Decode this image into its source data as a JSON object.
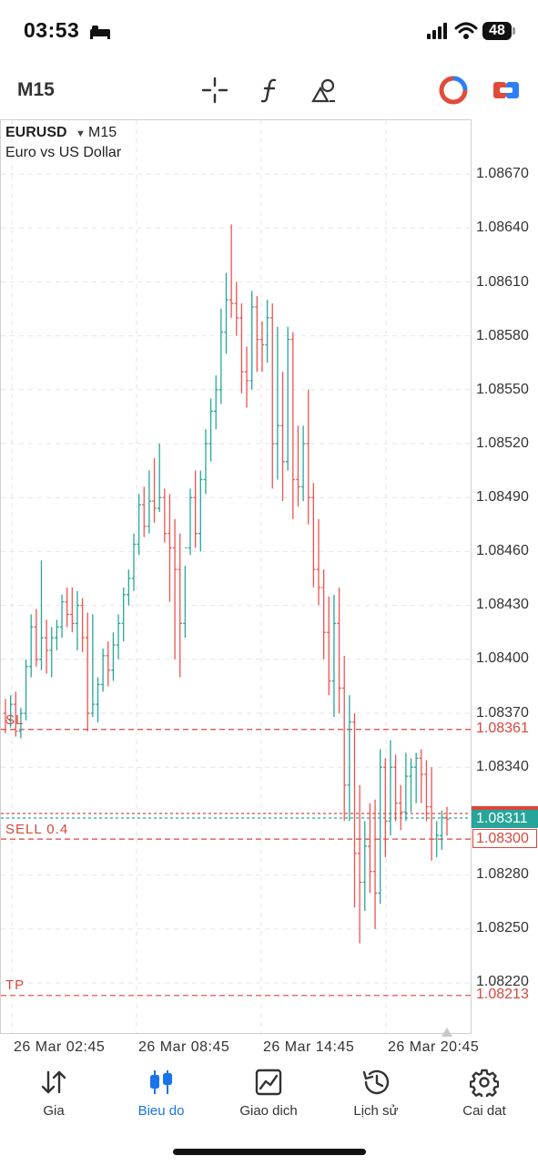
{
  "status_bar": {
    "time": "03:53",
    "battery": "48"
  },
  "toolbar": {
    "timeframe": "M15",
    "icons": [
      "crosshair-icon",
      "function-icon",
      "object-icon",
      "one-click-trading-icon",
      "trade-panel-icon"
    ]
  },
  "chart": {
    "symbol": "EURUSD",
    "timeframe": "M15",
    "description": "Euro vs US Dollar",
    "price_axis": [
      "1.08670",
      "1.08640",
      "1.08610",
      "1.08580",
      "1.08550",
      "1.08520",
      "1.08490",
      "1.08460",
      "1.08430",
      "1.08400",
      "1.08370",
      "1.08340",
      "1.08280",
      "1.08250",
      "1.08220"
    ],
    "levels": {
      "sl": {
        "tag": "SL",
        "price": "1.08361",
        "color": "#d8473d"
      },
      "sell": {
        "tag": "SELL 0.4",
        "price": "1.08300",
        "color": "#d8473d"
      },
      "tp": {
        "tag": "TP",
        "price": "1.08213",
        "color": "#d8473d"
      },
      "bid": {
        "price": "1.08311",
        "color": "#26a69a"
      },
      "ask": {
        "price": "1.08311",
        "color": "#d8473d"
      }
    },
    "time_axis": [
      "26 Mar 02:45",
      "26 Mar 08:45",
      "26 Mar 14:45",
      "26 Mar 20:45"
    ]
  },
  "chart_data": {
    "type": "ohlc",
    "title": "EURUSD M15",
    "ylim": [
      1.0819,
      1.0869
    ],
    "colors": {
      "up": "#26a69a",
      "down": "#ef5350"
    },
    "bars": [
      [
        1.0837,
        1.08378,
        1.08359,
        1.08366
      ],
      [
        1.08366,
        1.0838,
        1.08362,
        1.08375
      ],
      [
        1.08375,
        1.08382,
        1.08357,
        1.0836
      ],
      [
        1.0836,
        1.08373,
        1.08356,
        1.0837
      ],
      [
        1.0837,
        1.084,
        1.08366,
        1.08396
      ],
      [
        1.08396,
        1.08425,
        1.0839,
        1.08418
      ],
      [
        1.08418,
        1.08428,
        1.08396,
        1.084
      ],
      [
        1.084,
        1.08455,
        1.08394,
        1.08412
      ],
      [
        1.08412,
        1.08422,
        1.08392,
        1.08405
      ],
      [
        1.08405,
        1.08418,
        1.0839,
        1.08412
      ],
      [
        1.08412,
        1.08422,
        1.08405,
        1.08418
      ],
      [
        1.08418,
        1.08436,
        1.08412,
        1.08432
      ],
      [
        1.08432,
        1.0844,
        1.08418,
        1.08425
      ],
      [
        1.08425,
        1.0844,
        1.08415,
        1.0842
      ],
      [
        1.0842,
        1.08438,
        1.08405,
        1.0843
      ],
      [
        1.0843,
        1.08434,
        1.08404,
        1.08412
      ],
      [
        1.08412,
        1.08426,
        1.0836,
        1.0837
      ],
      [
        1.0837,
        1.08425,
        1.08368,
        1.08375
      ],
      [
        1.08375,
        1.0839,
        1.08365,
        1.08386
      ],
      [
        1.08386,
        1.08406,
        1.08382,
        1.08402
      ],
      [
        1.08402,
        1.0841,
        1.08385,
        1.08394
      ],
      [
        1.08394,
        1.08415,
        1.08388,
        1.08408
      ],
      [
        1.08408,
        1.08425,
        1.084,
        1.0842
      ],
      [
        1.0842,
        1.0844,
        1.0841,
        1.08436
      ],
      [
        1.08436,
        1.0845,
        1.0843,
        1.08445
      ],
      [
        1.08445,
        1.0847,
        1.08438,
        1.08464
      ],
      [
        1.08464,
        1.08492,
        1.08458,
        1.08486
      ],
      [
        1.08486,
        1.08496,
        1.08468,
        1.08474
      ],
      [
        1.08474,
        1.08505,
        1.0847,
        1.08488
      ],
      [
        1.08488,
        1.08512,
        1.08476,
        1.08484
      ],
      [
        1.08484,
        1.0852,
        1.08482,
        1.0849
      ],
      [
        1.0849,
        1.08495,
        1.08465,
        1.0847
      ],
      [
        1.0847,
        1.08492,
        1.08432,
        1.08462
      ],
      [
        1.08462,
        1.08478,
        1.084,
        1.0845
      ],
      [
        1.0845,
        1.0847,
        1.0839,
        1.0842
      ],
      [
        1.0842,
        1.08452,
        1.08412,
        1.08462
      ],
      [
        1.08462,
        1.08495,
        1.08458,
        1.0849
      ],
      [
        1.0849,
        1.08505,
        1.08462,
        1.0847
      ],
      [
        1.0847,
        1.08505,
        1.0846,
        1.085
      ],
      [
        1.085,
        1.08528,
        1.08492,
        1.0852
      ],
      [
        1.0852,
        1.08545,
        1.0851,
        1.08538
      ],
      [
        1.08538,
        1.08558,
        1.08528,
        1.0855
      ],
      [
        1.0855,
        1.08595,
        1.08542,
        1.08582
      ],
      [
        1.08582,
        1.08615,
        1.0857,
        1.086
      ],
      [
        1.086,
        1.08642,
        1.0859,
        1.08598
      ],
      [
        1.08598,
        1.0861,
        1.0858,
        1.0859
      ],
      [
        1.0859,
        1.08598,
        1.08548,
        1.0856
      ],
      [
        1.0856,
        1.08574,
        1.0854,
        1.08555
      ],
      [
        1.08555,
        1.08605,
        1.0855,
        1.08596
      ],
      [
        1.08596,
        1.08602,
        1.0856,
        1.08578
      ],
      [
        1.08578,
        1.08588,
        1.0856,
        1.08575
      ],
      [
        1.08575,
        1.086,
        1.08565,
        1.0859
      ],
      [
        1.0859,
        1.08598,
        1.08495,
        1.0852
      ],
      [
        1.0852,
        1.08585,
        1.085,
        1.0853
      ],
      [
        1.0853,
        1.0856,
        1.08488,
        1.0851
      ],
      [
        1.0851,
        1.08585,
        1.08505,
        1.08578
      ],
      [
        1.08578,
        1.08582,
        1.08478,
        1.085
      ],
      [
        1.085,
        1.0853,
        1.08485,
        1.08496
      ],
      [
        1.08496,
        1.0853,
        1.08488,
        1.0852
      ],
      [
        1.0852,
        1.0855,
        1.08475,
        1.0849
      ],
      [
        1.0849,
        1.08498,
        1.0844,
        1.0845
      ],
      [
        1.0845,
        1.08478,
        1.0843,
        1.0844
      ],
      [
        1.0844,
        1.0845,
        1.084,
        1.08415
      ],
      [
        1.08415,
        1.08435,
        1.0838,
        1.08388
      ],
      [
        1.08388,
        1.08436,
        1.08368,
        1.0842
      ],
      [
        1.0842,
        1.0844,
        1.0837,
        1.08384
      ],
      [
        1.08384,
        1.08402,
        1.0831,
        1.0833
      ],
      [
        1.0833,
        1.0838,
        1.0831,
        1.08365
      ],
      [
        1.08365,
        1.0837,
        1.08262,
        1.08292
      ],
      [
        1.08292,
        1.0833,
        1.08242,
        1.08276
      ],
      [
        1.08276,
        1.0831,
        1.0826,
        1.08296
      ],
      [
        1.08296,
        1.0832,
        1.0827,
        1.08282
      ],
      [
        1.08282,
        1.08322,
        1.0825,
        1.0827
      ],
      [
        1.0827,
        1.0835,
        1.08264,
        1.0834
      ],
      [
        1.0834,
        1.08345,
        1.0829,
        1.0831
      ],
      [
        1.0831,
        1.08355,
        1.08302,
        1.0834
      ],
      [
        1.0834,
        1.08347,
        1.0831,
        1.0832
      ],
      [
        1.0832,
        1.0833,
        1.08305,
        1.08315
      ],
      [
        1.08315,
        1.08348,
        1.0831,
        1.08335
      ],
      [
        1.08335,
        1.08345,
        1.08315,
        1.0834
      ],
      [
        1.0834,
        1.08348,
        1.0832,
        1.08345
      ],
      [
        1.08345,
        1.0835,
        1.0832,
        1.08336
      ],
      [
        1.08336,
        1.08344,
        1.0831,
        1.08318
      ],
      [
        1.08318,
        1.0834,
        1.08288,
        1.083
      ],
      [
        1.083,
        1.0831,
        1.0829,
        1.08302
      ],
      [
        1.08302,
        1.08316,
        1.08294,
        1.08312
      ],
      [
        1.08312,
        1.08318,
        1.08302,
        1.08311
      ]
    ]
  },
  "nav": [
    {
      "label": "Gia",
      "icon": "quotes-icon",
      "active": false
    },
    {
      "label": "Bieu do",
      "icon": "candles-icon",
      "active": true
    },
    {
      "label": "Giao dich",
      "icon": "trade-chart-icon",
      "active": false
    },
    {
      "label": "Lịch sử",
      "icon": "history-icon",
      "active": false
    },
    {
      "label": "Cai dat",
      "icon": "settings-gear-icon",
      "active": false
    }
  ]
}
